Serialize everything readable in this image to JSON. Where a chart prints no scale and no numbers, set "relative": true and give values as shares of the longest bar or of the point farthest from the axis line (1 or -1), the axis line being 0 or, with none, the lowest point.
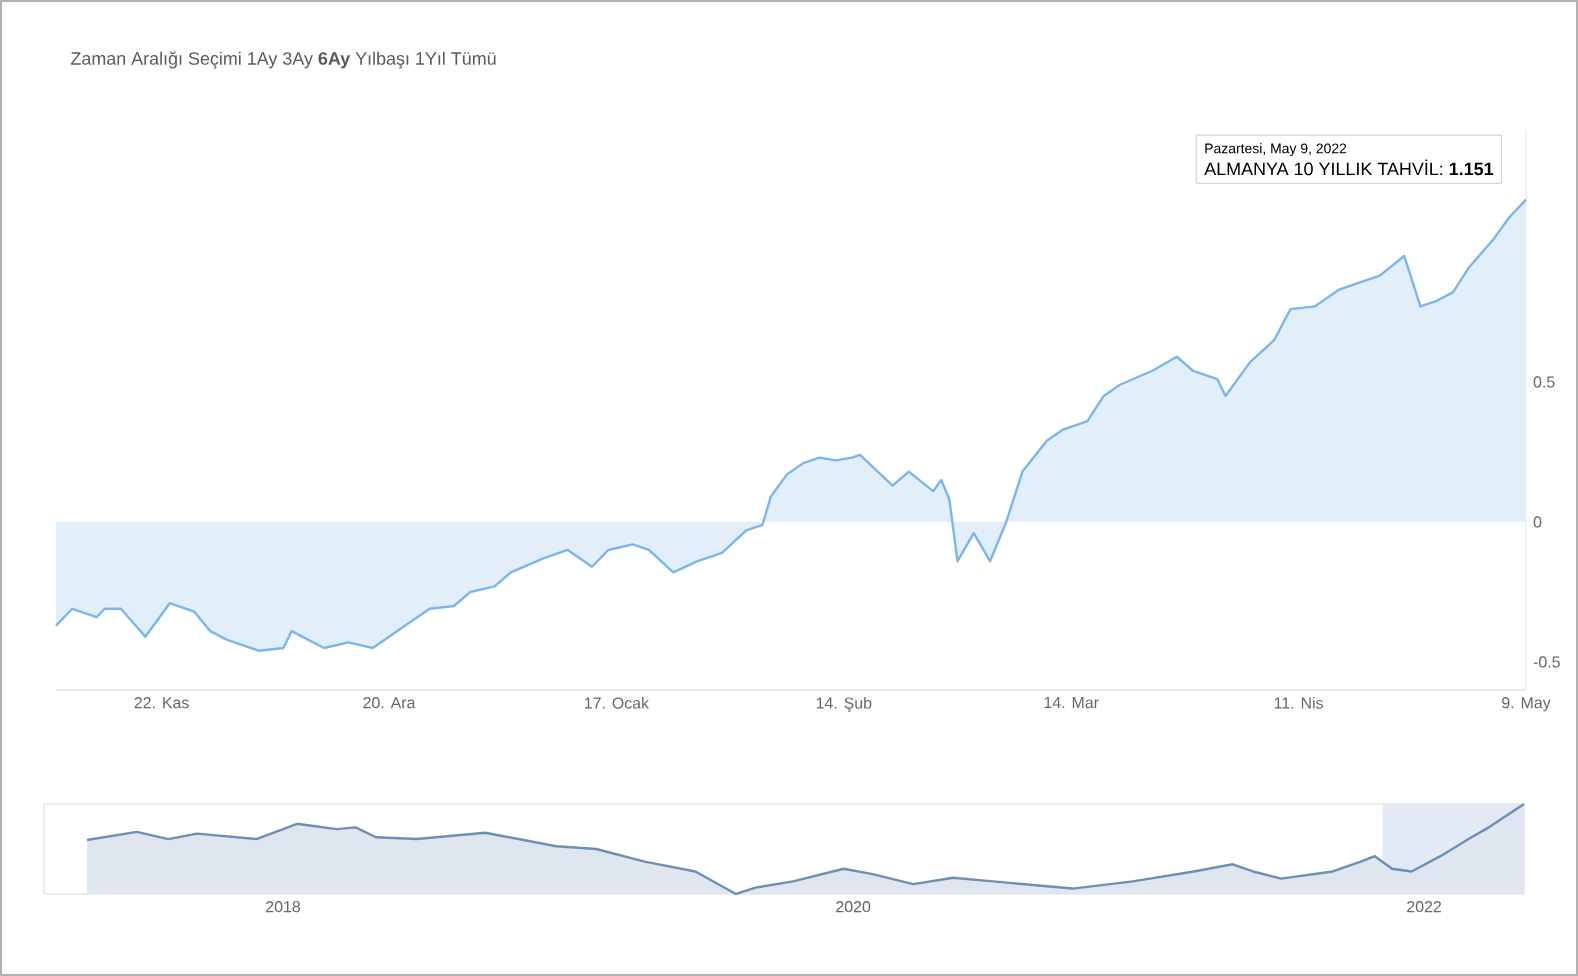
{
  "chart_data": [
    {
      "type": "area",
      "annotations": [
        "Zaman Aralığı Seçimi  1Ay  3Ay  **6Ay** Yılbaşı  1Yıl  Tümü",
        "Pazartesi, May 9, 2022",
        {
          "text": "ALMANYA 10 YILLIK TAHVİL: **1.151**",
          "x": "2022-05-09",
          "y": 1.151
        }
      ],
      "x": [
        "2021-11-09",
        "2021-11-11",
        "2021-11-14",
        "2021-11-15",
        "2021-11-17",
        "2021-11-20",
        "2021-11-23",
        "2021-11-26",
        "2021-11-28",
        "2021-11-30",
        "2021-12-04",
        "2021-12-07",
        "2021-12-08",
        "2021-12-10",
        "2021-12-12",
        "2021-12-15",
        "2021-12-18",
        "2021-12-22",
        "2021-12-25",
        "2021-12-28",
        "2021-12-30",
        "2022-01-02",
        "2022-01-04",
        "2022-01-08",
        "2022-01-11",
        "2022-01-14",
        "2022-01-16",
        "2022-01-19",
        "2022-01-21",
        "2022-01-24",
        "2022-01-27",
        "2022-01-30",
        "2022-02-02",
        "2022-02-04",
        "2022-02-05",
        "2022-02-07",
        "2022-02-09",
        "2022-02-11",
        "2022-02-13",
        "2022-02-15",
        "2022-02-16",
        "2022-02-20",
        "2022-02-22",
        "2022-02-25",
        "2022-02-26",
        "2022-02-27",
        "2022-02-28",
        "2022-03-02",
        "2022-03-04",
        "2022-03-06",
        "2022-03-08",
        "2022-03-11",
        "2022-03-13",
        "2022-03-16",
        "2022-03-18",
        "2022-03-20",
        "2022-03-24",
        "2022-03-27",
        "2022-03-29",
        "2022-04-01",
        "2022-04-02",
        "2022-04-05",
        "2022-04-08",
        "2022-04-10",
        "2022-04-13",
        "2022-04-16",
        "2022-04-19",
        "2022-04-21",
        "2022-04-24",
        "2022-04-26",
        "2022-04-28",
        "2022-04-30",
        "2022-05-02",
        "2022-05-05",
        "2022-05-07",
        "2022-05-09"
      ],
      "series": [
        {
          "color": "#7cb5ec",
          "values": [
            -0.37,
            -0.31,
            -0.34,
            -0.31,
            -0.31,
            -0.41,
            -0.29,
            -0.32,
            -0.39,
            -0.42,
            -0.46,
            -0.45,
            -0.39,
            -0.42,
            -0.45,
            -0.43,
            -0.45,
            -0.37,
            -0.31,
            -0.3,
            -0.25,
            -0.23,
            -0.18,
            -0.13,
            -0.1,
            -0.16,
            -0.1,
            -0.08,
            -0.1,
            -0.18,
            -0.14,
            -0.11,
            -0.03,
            -0.01,
            0.09,
            0.17,
            0.21,
            0.23,
            0.22,
            0.23,
            0.24,
            0.13,
            0.18,
            0.11,
            0.15,
            0.08,
            -0.14,
            -0.04,
            -0.14,
            0.0,
            0.18,
            0.29,
            0.33,
            0.36,
            0.45,
            0.49,
            0.54,
            0.59,
            0.54,
            0.51,
            0.45,
            0.57,
            0.65,
            0.76,
            0.77,
            0.83,
            0.86,
            0.88,
            0.95,
            0.77,
            0.79,
            0.82,
            0.91,
            1.01,
            1.09,
            1.151
          ]
        }
      ],
      "xlim": [
        "2021-11-09",
        "2022-05-09"
      ],
      "ylim": [
        -0.6,
        1.4
      ],
      "xticks": [
        {
          "value": "2021-11-22",
          "label": "22. Kas"
        },
        {
          "value": "2021-12-20",
          "label": "20. Ara"
        },
        {
          "value": "2022-01-17",
          "label": "17. Ocak"
        },
        {
          "value": "2022-02-14",
          "label": "14. Şub"
        },
        {
          "value": "2022-03-14",
          "label": "14. Mar"
        },
        {
          "value": "2022-04-11",
          "label": "11. Nis"
        },
        {
          "value": "2022-05-09",
          "label": "9. May"
        }
      ],
      "yticks": [
        -0.5,
        0,
        0.5
      ]
    },
    {
      "type": "area",
      "relative": true,
      "x": [
        "2017-04-25",
        "2017-06-28",
        "2017-08-07",
        "2017-09-13",
        "2017-11-28",
        "2018-01-19",
        "2018-03-11",
        "2018-04-04",
        "2018-04-30",
        "2018-06-21",
        "2018-09-17",
        "2018-12-17",
        "2019-02-06",
        "2019-04-09",
        "2019-06-13",
        "2019-08-04",
        "2019-08-29",
        "2019-10-16",
        "2019-12-20",
        "2020-01-26",
        "2020-03-18",
        "2020-05-08",
        "2020-06-28",
        "2020-10-08",
        "2020-12-24",
        "2021-03-12",
        "2021-05-01",
        "2021-05-27",
        "2021-07-02",
        "2021-09-06",
        "2021-10-12",
        "2021-10-30",
        "2021-11-21",
        "2021-12-16",
        "2022-01-22",
        "2022-02-27",
        "2022-03-25",
        "2022-05-09"
      ],
      "series": [
        {
          "color": "#6e8fb5",
          "values": [
            0.6,
            0.69,
            0.61,
            0.67,
            0.61,
            0.78,
            0.72,
            0.74,
            0.63,
            0.61,
            0.68,
            0.53,
            0.5,
            0.36,
            0.25,
            0,
            0.07,
            0.14,
            0.28,
            0.22,
            0.11,
            0.18,
            0.14,
            0.06,
            0.14,
            0.25,
            0.33,
            0.25,
            0.17,
            0.25,
            0.36,
            0.42,
            0.28,
            0.25,
            0.42,
            0.61,
            0.74,
            1
          ]
        }
      ],
      "xlim": [
        "2017-03-01",
        "2022-05-09"
      ],
      "xticks": [
        {
          "value": "2018-01-01",
          "label": "2018"
        },
        {
          "value": "2020-01-01",
          "label": "2020"
        },
        {
          "value": "2022-01-01",
          "label": "2022"
        }
      ],
      "bands": [
        {
          "axis": "x",
          "from": "2021-11-09",
          "to": "2022-05-09",
          "color": "#e3e9f5"
        }
      ]
    }
  ]
}
